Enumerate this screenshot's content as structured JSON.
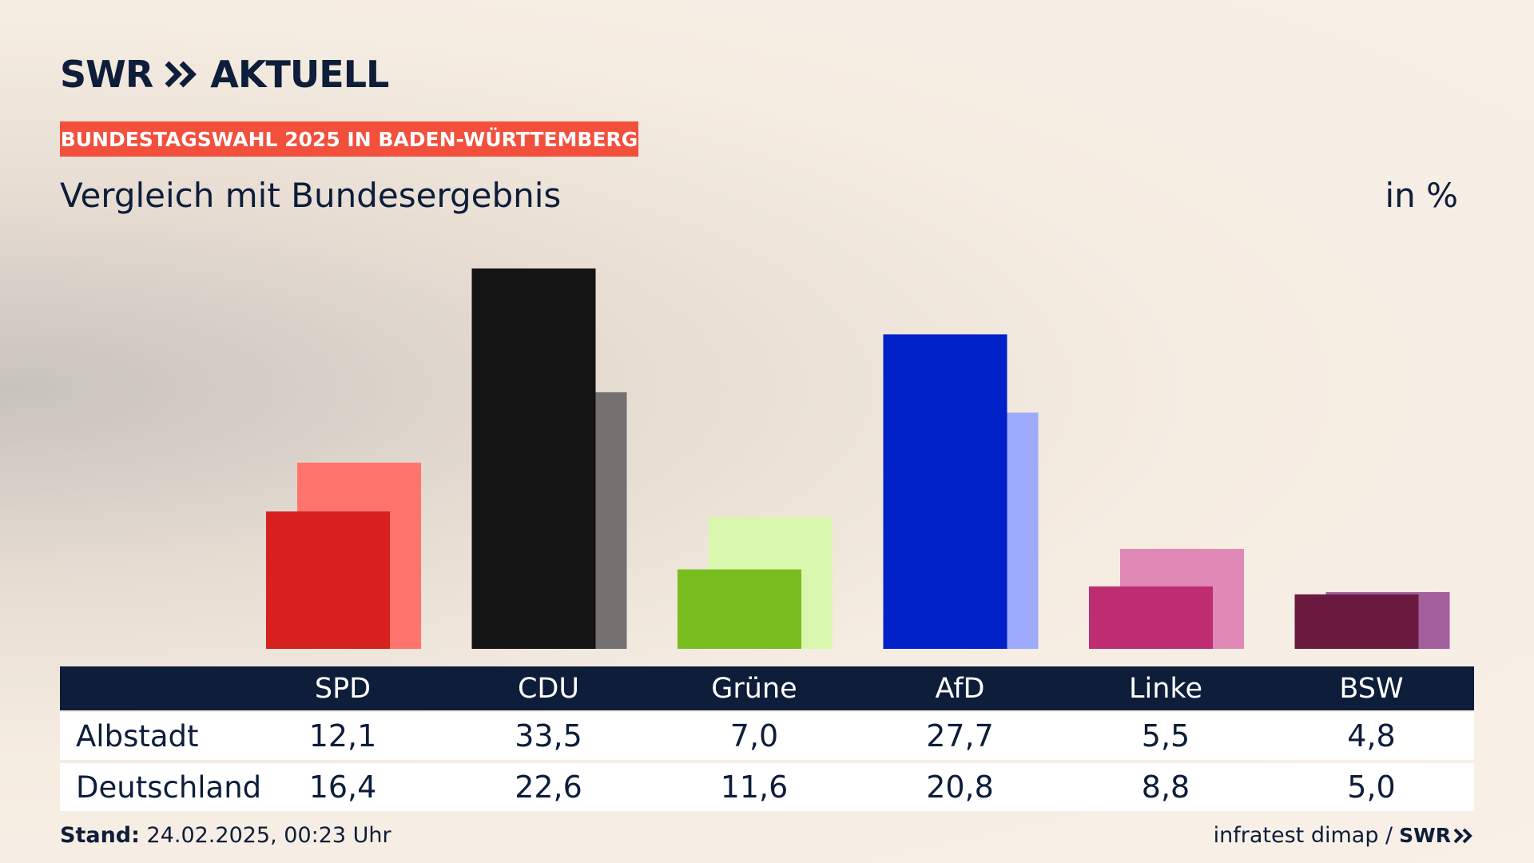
{
  "header": {
    "brand_left": "SWR",
    "brand_right": "AKTUELL",
    "badge": "BUNDESTAGSWAHL 2025 IN BADEN-WÜRTTEMBERG",
    "subtitle": "Vergleich mit Bundesergebnis",
    "unit": "in %"
  },
  "chart_data": {
    "type": "bar",
    "categories": [
      "SPD",
      "CDU",
      "Grüne",
      "AfD",
      "Linke",
      "BSW"
    ],
    "series": [
      {
        "name": "Albstadt",
        "values": [
          12.1,
          33.5,
          7.0,
          27.7,
          5.5,
          4.8
        ],
        "colors": [
          "#d7211f",
          "#141414",
          "#78bd1d",
          "#0021c8",
          "#be2d72",
          "#6b1a3f"
        ]
      },
      {
        "name": "Deutschland",
        "values": [
          16.4,
          22.6,
          11.6,
          20.8,
          8.8,
          5.0
        ],
        "colors": [
          "#ff746c",
          "#747270",
          "#d9f7ad",
          "#9eaafc",
          "#e088b6",
          "#a1609c"
        ]
      }
    ],
    "ylim": [
      0,
      33.5
    ],
    "grid": false,
    "legend": "none"
  },
  "table": {
    "rows": [
      {
        "label": "Albstadt",
        "values": [
          "12,1",
          "33,5",
          "7,0",
          "27,7",
          "5,5",
          "4,8"
        ]
      },
      {
        "label": "Deutschland",
        "values": [
          "16,4",
          "22,6",
          "11,6",
          "20,8",
          "8,8",
          "5,0"
        ]
      }
    ]
  },
  "footer": {
    "stand_label": "Stand:",
    "stand_value": "24.02.2025, 00:23 Uhr",
    "source": "infratest dimap /",
    "source_brand": "SWR"
  }
}
